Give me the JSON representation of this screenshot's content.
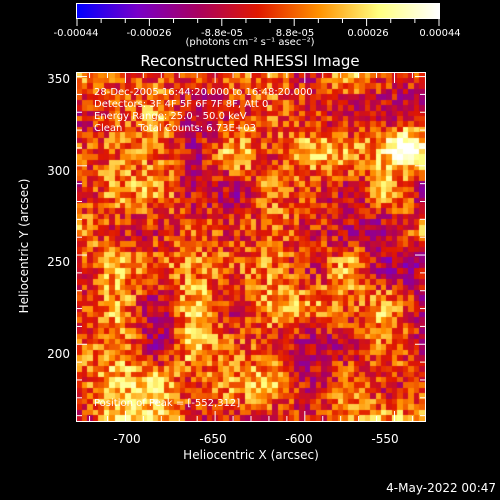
{
  "colorbar": {
    "tick_labels": [
      "-0.00044",
      "-0.00026",
      "-8.8e-05",
      "8.8e-05",
      "0.00026",
      "0.00044"
    ],
    "min": -0.00044,
    "max": 0.00044,
    "colormap": [
      "#0000ff",
      "#7800c8",
      "#a80060",
      "#e01800",
      "#ff9000",
      "#ffff80",
      "#ffffff"
    ]
  },
  "units": "(photons cm⁻² s⁻¹ asec⁻²)",
  "title": "Reconstructed RHESSI Image",
  "info": {
    "time_range": "28-Dec-2005 16:44:20.000 to 16:48:20.000",
    "detectors": "Detectors: 3F 4F 5F 6F 7F 8F, Att 0",
    "energy": "Energy Range: 25.0 - 50.0 keV",
    "clean": "Clean     Total Counts: 6.73E+03"
  },
  "peak": "Position of Peak = [-552,312]",
  "axes": {
    "xlabel": "Heliocentric X (arcsec)",
    "ylabel": "Heliocentric Y (arcsec)",
    "xticks": [
      -700,
      -650,
      -600,
      -550
    ],
    "yticks": [
      200,
      250,
      300,
      350
    ],
    "xlim": [
      -727,
      -533
    ],
    "ylim": [
      157,
      352
    ]
  },
  "timestamp": "4-May-2022 00:47"
}
